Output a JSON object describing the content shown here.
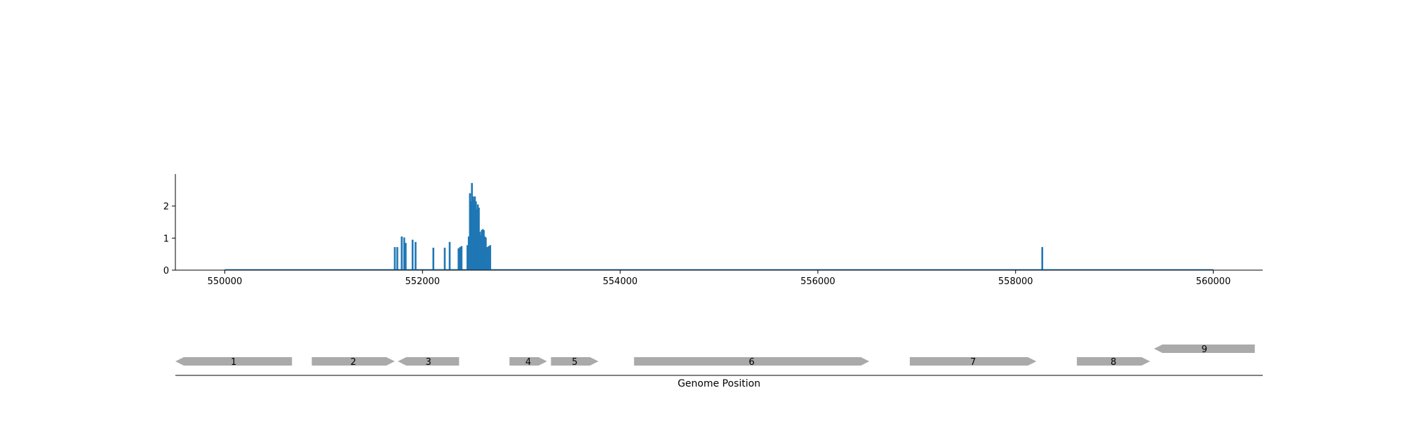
{
  "chart_data": [
    {
      "type": "bar",
      "title": "",
      "xlabel": "",
      "ylabel": "",
      "xlim": [
        549500,
        560500
      ],
      "ylim": [
        0,
        3.0
      ],
      "x_ticks": [
        550000,
        552000,
        554000,
        556000,
        558000,
        560000
      ],
      "x_tick_labels": [
        "550000",
        "552000",
        "554000",
        "556000",
        "558000",
        "560000"
      ],
      "y_ticks": [
        0,
        1,
        2
      ],
      "y_tick_labels": [
        "0",
        "1",
        "2"
      ],
      "baseline_range": [
        550000,
        560000
      ],
      "bar_color": "#1f77b4",
      "bars": [
        {
          "x": 551720,
          "y": 0.72
        },
        {
          "x": 551745,
          "y": 0.72
        },
        {
          "x": 551790,
          "y": 1.05
        },
        {
          "x": 551815,
          "y": 1.02
        },
        {
          "x": 551830,
          "y": 0.85
        },
        {
          "x": 551900,
          "y": 0.95
        },
        {
          "x": 551930,
          "y": 0.88
        },
        {
          "x": 552110,
          "y": 0.7
        },
        {
          "x": 552225,
          "y": 0.7
        },
        {
          "x": 552275,
          "y": 0.88
        },
        {
          "x": 552365,
          "y": 0.68
        },
        {
          "x": 552380,
          "y": 0.72
        },
        {
          "x": 552395,
          "y": 0.75
        },
        {
          "x": 552455,
          "y": 0.78
        },
        {
          "x": 552468,
          "y": 1.05
        },
        {
          "x": 552480,
          "y": 2.4
        },
        {
          "x": 552490,
          "y": 2.15
        },
        {
          "x": 552500,
          "y": 2.72
        },
        {
          "x": 552510,
          "y": 2.3
        },
        {
          "x": 552520,
          "y": 2.2
        },
        {
          "x": 552530,
          "y": 2.3
        },
        {
          "x": 552540,
          "y": 2.15
        },
        {
          "x": 552550,
          "y": 1.9
        },
        {
          "x": 552560,
          "y": 2.05
        },
        {
          "x": 552570,
          "y": 1.95
        },
        {
          "x": 552580,
          "y": 1.2
        },
        {
          "x": 552590,
          "y": 1.1
        },
        {
          "x": 552600,
          "y": 1.25
        },
        {
          "x": 552610,
          "y": 1.28
        },
        {
          "x": 552620,
          "y": 1.25
        },
        {
          "x": 552630,
          "y": 1.05
        },
        {
          "x": 552640,
          "y": 1.02
        },
        {
          "x": 552655,
          "y": 0.72
        },
        {
          "x": 552670,
          "y": 0.75
        },
        {
          "x": 552685,
          "y": 0.78
        },
        {
          "x": 558270,
          "y": 0.72
        }
      ]
    },
    {
      "type": "gene_track",
      "xlabel": "Genome Position",
      "xlim": [
        549500,
        560500
      ],
      "gene_color": "#aaaaaa",
      "genes": [
        {
          "label": "1",
          "start": 549500,
          "end": 550680,
          "strand": "-",
          "row": 0
        },
        {
          "label": "2",
          "start": 550880,
          "end": 551720,
          "strand": "+",
          "row": 0
        },
        {
          "label": "3",
          "start": 551750,
          "end": 552370,
          "strand": "-",
          "row": 0
        },
        {
          "label": "4",
          "start": 552880,
          "end": 553260,
          "strand": "+",
          "row": 0
        },
        {
          "label": "5",
          "start": 553300,
          "end": 553780,
          "strand": "+",
          "row": 0
        },
        {
          "label": "6",
          "start": 554140,
          "end": 556520,
          "strand": "+",
          "row": 0
        },
        {
          "label": "7",
          "start": 556930,
          "end": 558210,
          "strand": "+",
          "row": 0
        },
        {
          "label": "8",
          "start": 558620,
          "end": 559360,
          "strand": "+",
          "row": 0
        },
        {
          "label": "9",
          "start": 559400,
          "end": 560420,
          "strand": "-",
          "row": 1
        }
      ]
    }
  ]
}
